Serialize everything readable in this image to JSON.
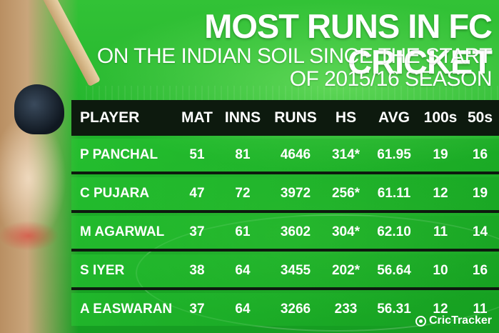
{
  "title": "MOST RUNS IN FC CRICKET",
  "subtitle_lines": [
    "ON THE INDIAN SOIL SINCE THE START",
    "OF 2015/16 SEASON"
  ],
  "table": {
    "headers": {
      "player": "PLAYER",
      "mat": "MAT",
      "inns": "INNS",
      "runs": "RUNS",
      "hs": "HS",
      "avg": "AVG",
      "hundreds": "100s",
      "fifties": "50s"
    },
    "rows": [
      {
        "player": "P PANCHAL",
        "mat": "51",
        "inns": "81",
        "runs": "4646",
        "hs": "314*",
        "avg": "61.95",
        "hundreds": "19",
        "fifties": "16"
      },
      {
        "player": "C PUJARA",
        "mat": "47",
        "inns": "72",
        "runs": "3972",
        "hs": "256*",
        "avg": "61.11",
        "hundreds": "12",
        "fifties": "19"
      },
      {
        "player": "M AGARWAL",
        "mat": "37",
        "inns": "61",
        "runs": "3602",
        "hs": "304*",
        "avg": "62.10",
        "hundreds": "11",
        "fifties": "14"
      },
      {
        "player": "S IYER",
        "mat": "38",
        "inns": "64",
        "runs": "3455",
        "hs": "202*",
        "avg": "56.64",
        "hundreds": "10",
        "fifties": "16"
      },
      {
        "player": "A EASWARAN",
        "mat": "37",
        "inns": "64",
        "runs": "3266",
        "hs": "233",
        "avg": "56.31",
        "hundreds": "12",
        "fifties": "11"
      }
    ]
  },
  "brand": {
    "name": "CricTracker",
    "icon": "crictracker-logo-icon"
  },
  "colors": {
    "background": "#1fb12a",
    "header_bar": "#0d1a0e",
    "text": "#ffffff"
  }
}
